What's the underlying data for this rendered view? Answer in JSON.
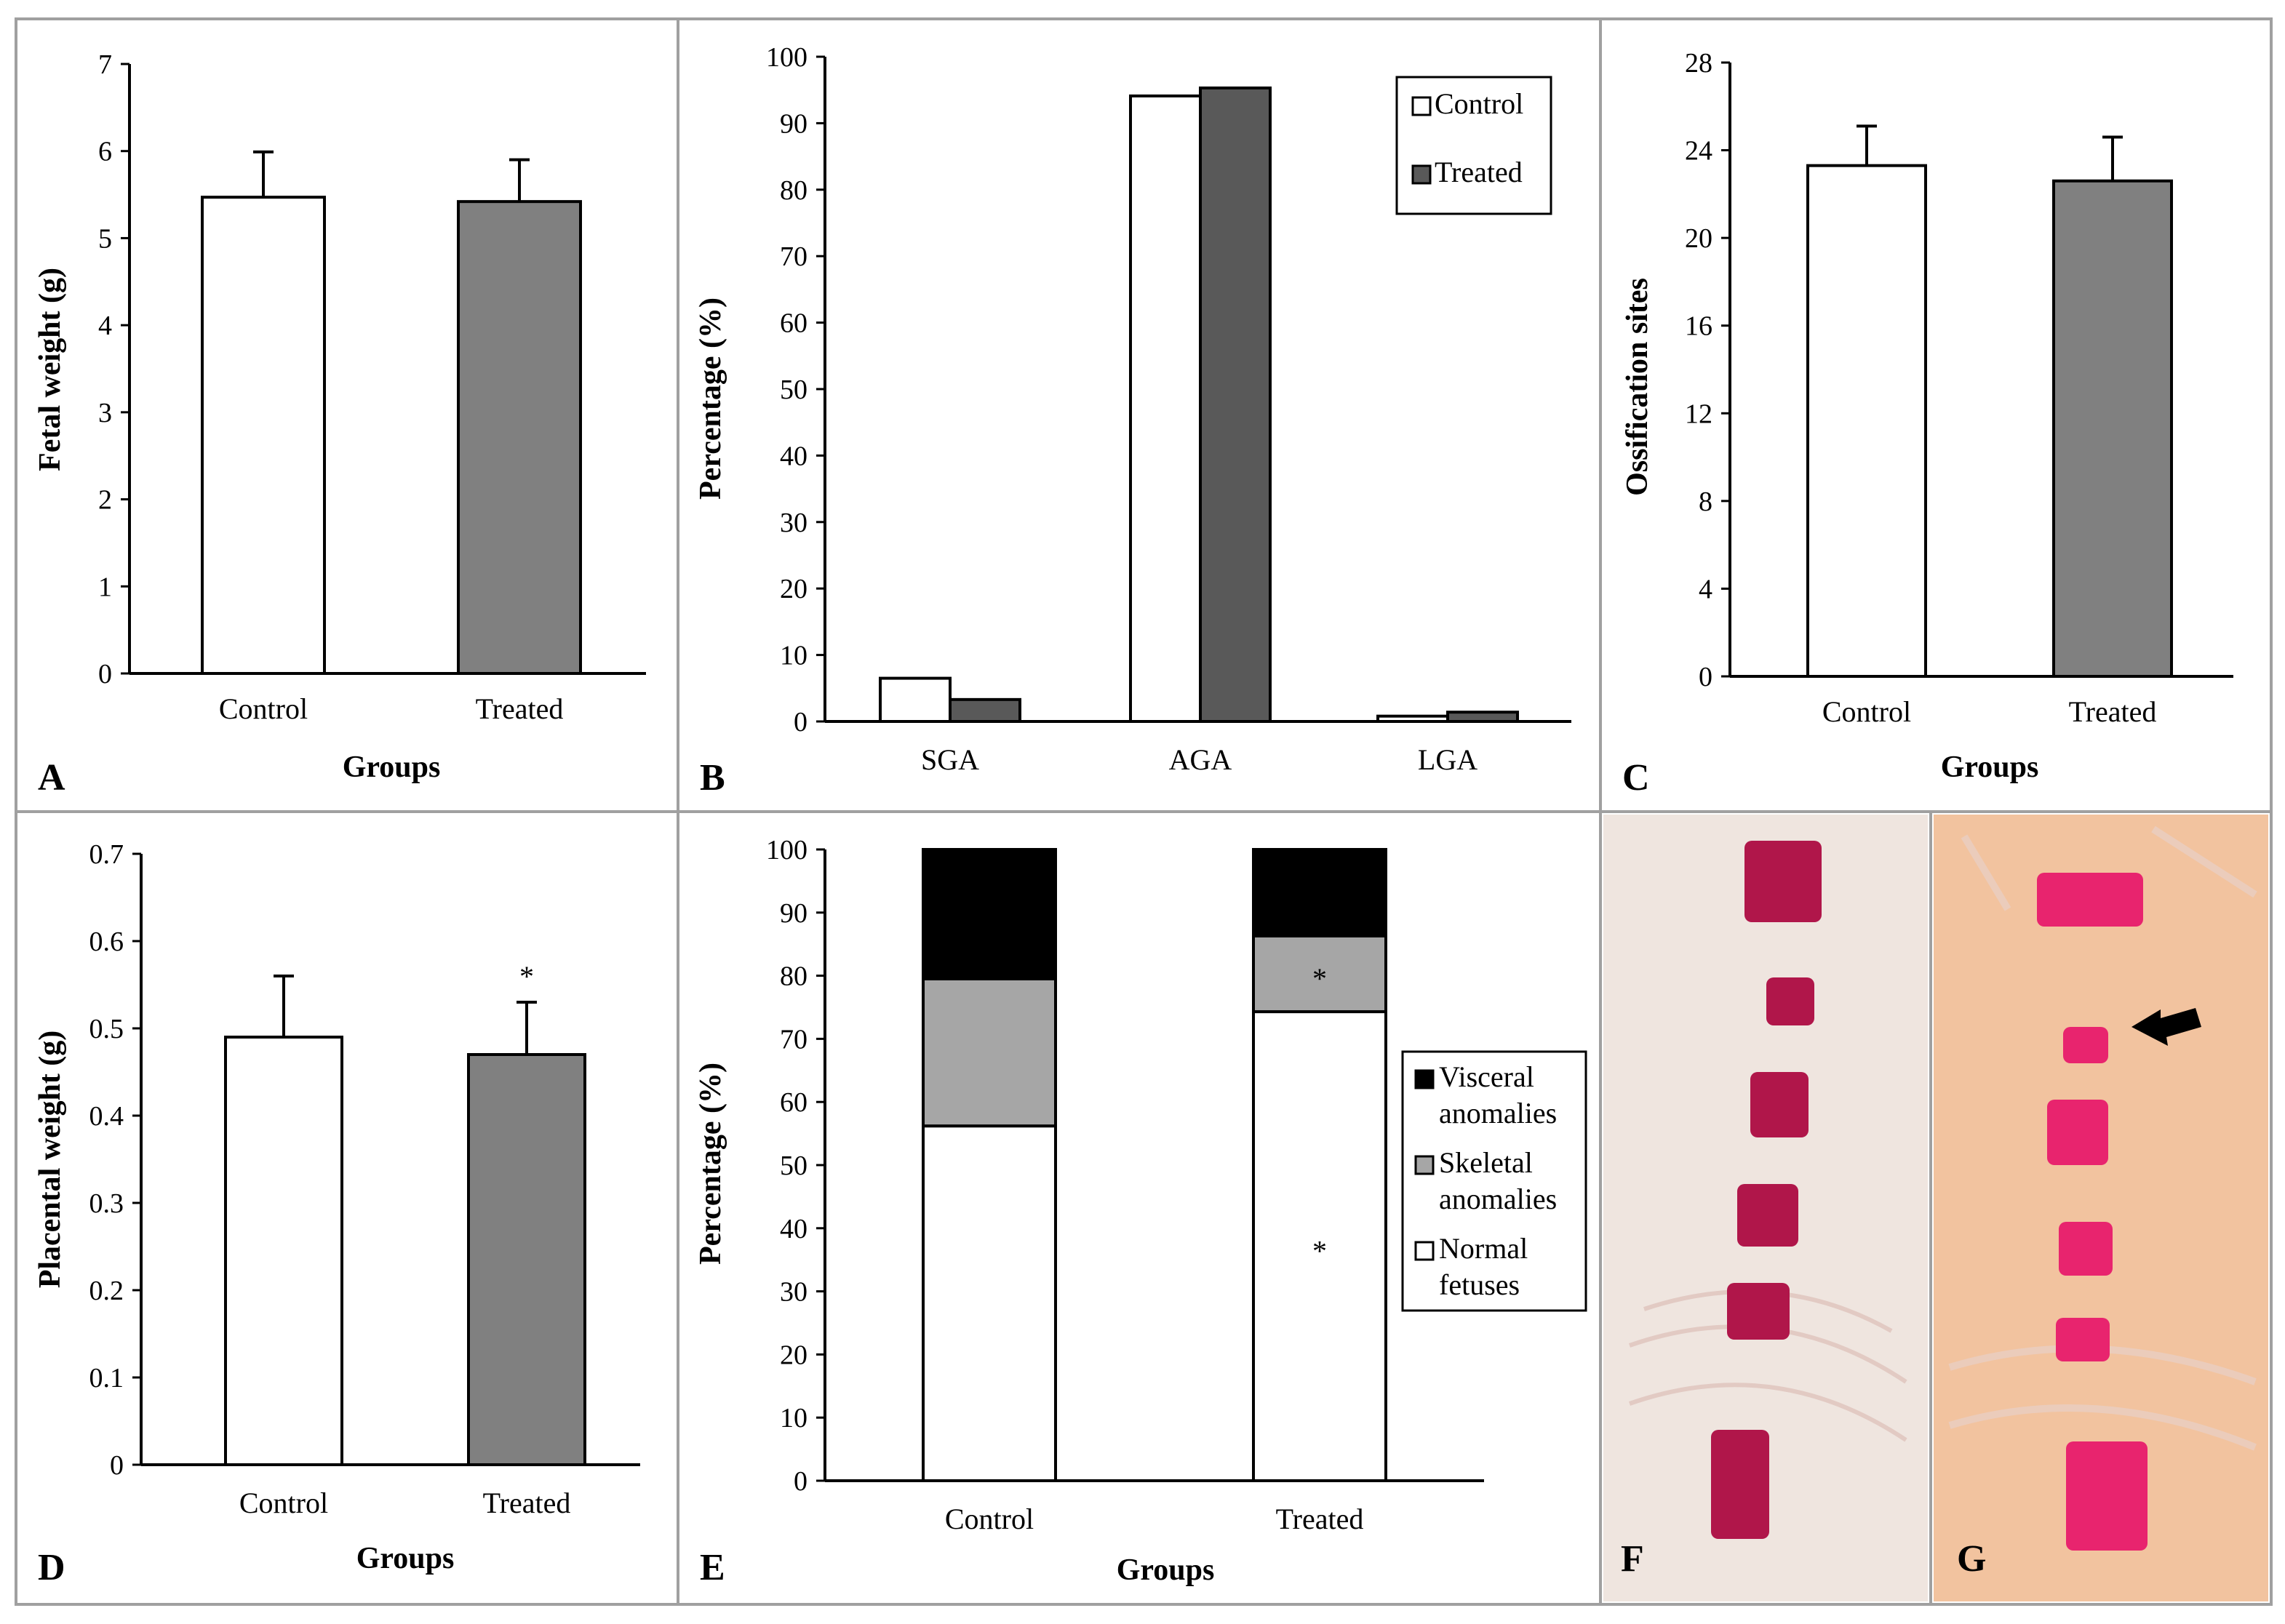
{
  "figure": {
    "panel_letters": [
      "A",
      "B",
      "C",
      "D",
      "E",
      "F",
      "G"
    ]
  },
  "colors": {
    "control": "#ffffff",
    "treated_gray": "#808080",
    "treated_dark": "#595959",
    "visceral": "#000000",
    "skeletal": "#a6a6a6",
    "normal": "#ffffff",
    "stain": "#b0164a",
    "stain_bright": "#e8246e",
    "panel_border": "#a0a0a0"
  },
  "chart_data": [
    {
      "panel": "A",
      "type": "bar",
      "categories": [
        "Control",
        "Treated"
      ],
      "values": [
        5.47,
        5.42
      ],
      "errors": [
        0.52,
        0.48
      ],
      "title": "",
      "xlabel": "Groups",
      "ylabel": "Fetal weight (g)",
      "ylim": [
        0,
        7
      ],
      "yticks": [
        "0",
        "1",
        "2",
        "3",
        "4",
        "5",
        "6",
        "7"
      ],
      "annotations": []
    },
    {
      "panel": "B",
      "type": "bar",
      "categories": [
        "SGA",
        "AGA",
        "LGA"
      ],
      "series": [
        {
          "name": "Control",
          "values": [
            6.5,
            94.1,
            0.8
          ]
        },
        {
          "name": "Treated",
          "values": [
            3.3,
            95.3,
            1.4
          ]
        }
      ],
      "title": "",
      "xlabel": "",
      "ylabel": "Percentage (%)",
      "ylim": [
        0,
        100
      ],
      "yticks": [
        "0",
        "10",
        "20",
        "30",
        "40",
        "50",
        "60",
        "70",
        "80",
        "90",
        "100"
      ],
      "legend": [
        "Control",
        "Treated"
      ],
      "legend_position": "top-right"
    },
    {
      "panel": "C",
      "type": "bar",
      "categories": [
        "Control",
        "Treated"
      ],
      "values": [
        23.3,
        22.6
      ],
      "errors": [
        1.8,
        2.0
      ],
      "title": "",
      "xlabel": "Groups",
      "ylabel": "Ossification sites",
      "ylim": [
        0,
        28
      ],
      "yticks": [
        "0",
        "4",
        "8",
        "12",
        "16",
        "20",
        "24",
        "28"
      ],
      "annotations": []
    },
    {
      "panel": "D",
      "type": "bar",
      "categories": [
        "Control",
        "Treated"
      ],
      "values": [
        0.49,
        0.47
      ],
      "errors": [
        0.07,
        0.06
      ],
      "title": "",
      "xlabel": "Groups",
      "ylabel": "Placental weight (g)",
      "ylim": [
        0,
        0.7
      ],
      "yticks": [
        "0",
        "0.1",
        "0.2",
        "0.3",
        "0.4",
        "0.5",
        "0.6",
        "0.7"
      ],
      "annotations": [
        {
          "category": "Treated",
          "text": "*"
        }
      ]
    },
    {
      "panel": "E",
      "type": "bar",
      "stacked": true,
      "categories": [
        "Control",
        "Treated"
      ],
      "series": [
        {
          "name": "Normal fetuses",
          "values": [
            56.2,
            74.3
          ]
        },
        {
          "name": "Skeletal anomalies",
          "values": [
            23.3,
            12.0
          ]
        },
        {
          "name": "Visceral anomalies",
          "values": [
            20.5,
            13.7
          ]
        }
      ],
      "title": "",
      "xlabel": "Groups",
      "ylabel": "Percentage (%)",
      "ylim": [
        0,
        100
      ],
      "yticks": [
        "0",
        "10",
        "20",
        "30",
        "40",
        "50",
        "60",
        "70",
        "80",
        "90",
        "100"
      ],
      "legend": [
        [
          "Visceral",
          "anomalies"
        ],
        [
          "Skeletal",
          "anomalies"
        ],
        [
          "Normal",
          "fetuses"
        ]
      ],
      "legend_position": "right",
      "annotations": [
        {
          "category": "Treated",
          "series": "Skeletal anomalies",
          "text": "*"
        },
        {
          "category": "Treated",
          "series": "Normal fetuses",
          "text": "*"
        }
      ]
    }
  ]
}
